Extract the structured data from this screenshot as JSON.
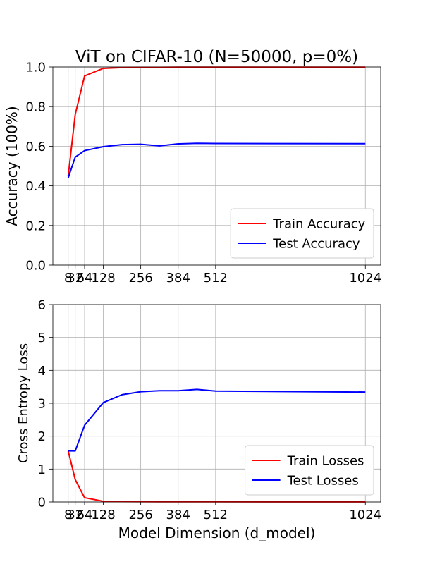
{
  "chart_data": [
    {
      "type": "line",
      "title": "ViT on CIFAR-10 (N=50000, p=0%)",
      "xlabel": "",
      "ylabel": "Accuracy (100%)",
      "xlim": [
        0,
        1024
      ],
      "ylim": [
        0.0,
        1.0
      ],
      "xticks": [
        8,
        32,
        64,
        128,
        256,
        384,
        512,
        1024
      ],
      "xticklabels": [
        "8",
        "32",
        "64",
        "128",
        "256",
        "384",
        "512",
        "1024"
      ],
      "yticks": [
        0.0,
        0.2,
        0.4,
        0.6,
        0.8,
        1.0
      ],
      "yticklabels": [
        "0.0",
        "0.2",
        "0.4",
        "0.6",
        "0.8",
        "1.0"
      ],
      "grid": true,
      "legend_position": "lower-right",
      "series": [
        {
          "name": "Train Accuracy",
          "color": "#ff0000",
          "x": [
            8,
            32,
            64,
            128,
            192,
            256,
            320,
            384,
            448,
            512,
            1024
          ],
          "y": [
            0.45,
            0.76,
            0.955,
            0.993,
            0.997,
            0.998,
            0.998,
            0.999,
            0.999,
            0.999,
            0.999
          ]
        },
        {
          "name": "Test Accuracy",
          "color": "#0000ff",
          "x": [
            8,
            32,
            64,
            128,
            192,
            256,
            320,
            384,
            448,
            512,
            1024
          ],
          "y": [
            0.44,
            0.545,
            0.578,
            0.598,
            0.608,
            0.61,
            0.602,
            0.612,
            0.615,
            0.614,
            0.613
          ]
        }
      ]
    },
    {
      "type": "line",
      "title": "",
      "xlabel": "Model Dimension (d_model)",
      "ylabel": "Cross Entropy Loss",
      "xlim": [
        0,
        1024
      ],
      "ylim": [
        0,
        6
      ],
      "xticks": [
        8,
        32,
        64,
        128,
        256,
        384,
        512,
        1024
      ],
      "xticklabels": [
        "8",
        "32",
        "64",
        "128",
        "256",
        "384",
        "512",
        "1024"
      ],
      "yticks": [
        0,
        1,
        2,
        3,
        4,
        5,
        6
      ],
      "yticklabels": [
        "0",
        "1",
        "2",
        "3",
        "4",
        "5",
        "6"
      ],
      "grid": true,
      "legend_position": "lower-right",
      "series": [
        {
          "name": "Train Losses",
          "color": "#ff0000",
          "x": [
            8,
            32,
            64,
            128,
            192,
            256,
            320,
            384,
            448,
            512,
            1024
          ],
          "y": [
            1.55,
            0.68,
            0.13,
            0.02,
            0.01,
            0.008,
            0.006,
            0.005,
            0.005,
            0.004,
            0.003
          ]
        },
        {
          "name": "Test Losses",
          "color": "#0000ff",
          "x": [
            8,
            32,
            64,
            128,
            192,
            256,
            320,
            384,
            448,
            512,
            1024
          ],
          "y": [
            1.55,
            1.55,
            2.33,
            3.02,
            3.26,
            3.35,
            3.38,
            3.38,
            3.42,
            3.37,
            3.34
          ]
        }
      ]
    }
  ]
}
